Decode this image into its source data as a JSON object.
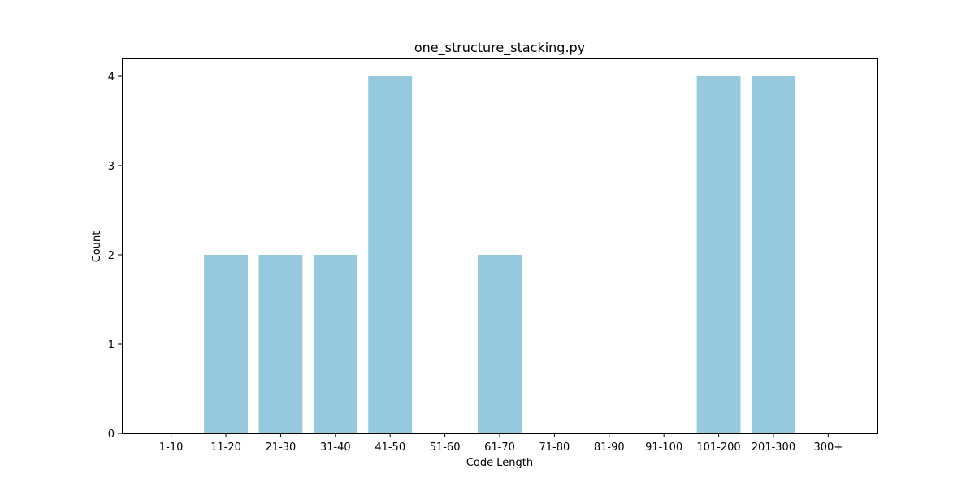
{
  "chart_data": {
    "type": "bar",
    "title": "one_structure_stacking.py",
    "xlabel": "Code Length",
    "ylabel": "Count",
    "categories": [
      "1-10",
      "11-20",
      "21-30",
      "31-40",
      "41-50",
      "51-60",
      "61-70",
      "71-80",
      "81-90",
      "91-100",
      "101-200",
      "201-300",
      "300+"
    ],
    "values": [
      0,
      2,
      2,
      2,
      4,
      0,
      2,
      0,
      0,
      0,
      4,
      4,
      0
    ],
    "ylim": [
      0,
      4.2
    ],
    "yticks": [
      0,
      1,
      2,
      3,
      4
    ],
    "grid": false,
    "bar_color": "#96c9dd"
  }
}
